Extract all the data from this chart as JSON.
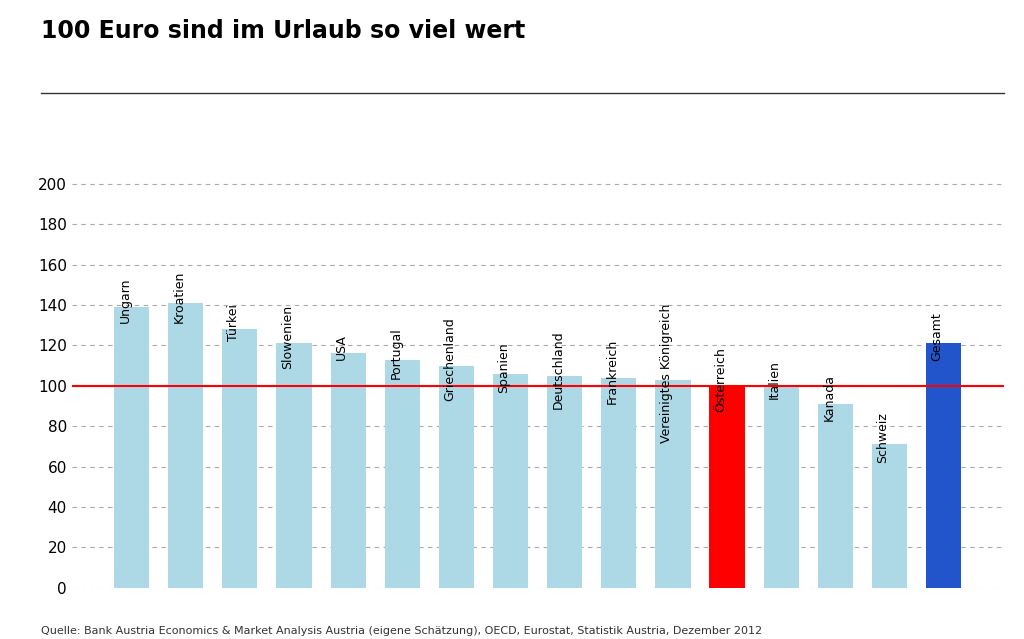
{
  "title": "100 Euro sind im Urlaub so viel wert",
  "categories": [
    "Ungarn",
    "Kroatien",
    "Türkei",
    "Slowenien",
    "USA",
    "Portugal",
    "Griechenland",
    "Spanien",
    "Deutschland",
    "Frankreich",
    "Vereinigtes Königreich",
    "Österreich",
    "Italien",
    "Kanada",
    "Schweiz",
    "Gesamt"
  ],
  "values": [
    139,
    141,
    128,
    121,
    116,
    113,
    110,
    106,
    105,
    104,
    103,
    100,
    100,
    91,
    71,
    121
  ],
  "bar_colors": [
    "#ADD8E6",
    "#ADD8E6",
    "#ADD8E6",
    "#ADD8E6",
    "#ADD8E6",
    "#ADD8E6",
    "#ADD8E6",
    "#ADD8E6",
    "#ADD8E6",
    "#ADD8E6",
    "#ADD8E6",
    "#FF0000",
    "#ADD8E6",
    "#ADD8E6",
    "#ADD8E6",
    "#2255CC"
  ],
  "reference_line": 100,
  "reference_line_color": "#FF0000",
  "ylim": [
    0,
    215
  ],
  "yticks": [
    0,
    20,
    40,
    60,
    80,
    100,
    120,
    140,
    160,
    180,
    200
  ],
  "source_text": "Quelle: Bank Austria Economics & Market Analysis Austria (eigene Schätzung), OECD, Eurostat, Statistik Austria, Dezember 2012",
  "background_color": "#FFFFFF",
  "title_fontsize": 17,
  "label_fontsize": 9,
  "tick_fontsize": 11,
  "source_fontsize": 8,
  "bar_width": 0.65
}
